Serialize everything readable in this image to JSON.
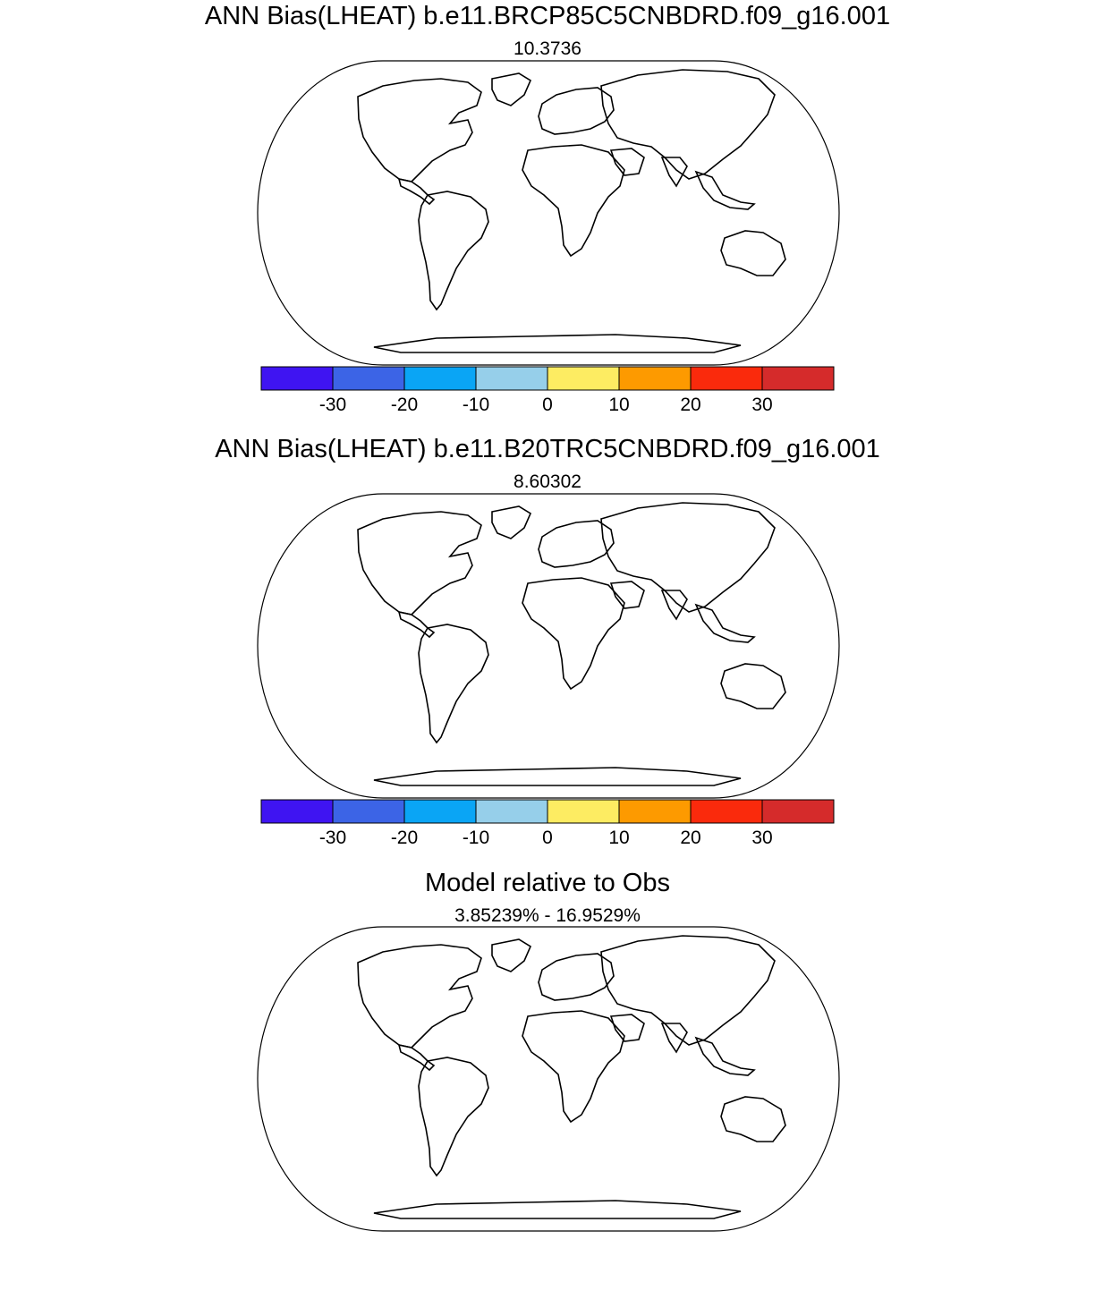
{
  "panels": [
    {
      "title": "ANN Bias(LHEAT) b.e11.BRCP85C5CNBDRD.f09_g16.001",
      "subtitle": "10.3736",
      "variant": "future"
    },
    {
      "title": "ANN Bias(LHEAT) b.e11.B20TRC5CNBDRD.f09_g16.001",
      "subtitle": "8.60302",
      "variant": "present"
    },
    {
      "title": "Model relative to Obs",
      "subtitle": "3.85239% - 16.9529%",
      "variant": "relative"
    }
  ],
  "colorbar": {
    "colors": [
      "#3f14f2",
      "#3c64e6",
      "#0aa5f5",
      "#96cfea",
      "#fdec62",
      "#fd9a00",
      "#fa2a0c",
      "#d52b2b"
    ],
    "tick_labels": [
      "-30",
      "-20",
      "-10",
      "0",
      "10",
      "20",
      "30"
    ]
  },
  "relative_colors": {
    "worse": "#ee1111",
    "better": "#22ee22"
  }
}
